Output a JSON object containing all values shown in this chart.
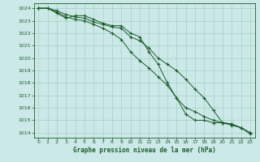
{
  "hours": [
    0,
    1,
    2,
    3,
    4,
    5,
    6,
    7,
    8,
    9,
    10,
    11,
    12,
    13,
    14,
    15,
    16,
    17,
    18,
    19,
    20,
    21,
    22,
    23
  ],
  "line1": [
    1024.0,
    1024.0,
    1023.8,
    1023.5,
    1023.3,
    1023.2,
    1022.9,
    1022.7,
    1022.5,
    1022.4,
    1021.7,
    1021.4,
    1020.8,
    1020.0,
    1019.5,
    1019.0,
    1018.3,
    1017.5,
    1016.8,
    1015.8,
    1014.8,
    1014.6,
    1014.4,
    1014.0
  ],
  "line2": [
    1024.0,
    1024.0,
    1023.6,
    1023.2,
    1023.4,
    1023.4,
    1023.1,
    1022.8,
    1022.6,
    1022.6,
    1022.0,
    1021.7,
    1020.5,
    1019.5,
    1018.0,
    1016.8,
    1015.5,
    1015.0,
    1015.0,
    1014.8,
    1014.8,
    1014.7,
    1014.4,
    1014.0
  ],
  "line3": [
    1024.0,
    1024.0,
    1023.7,
    1023.3,
    1023.1,
    1023.0,
    1022.7,
    1022.4,
    1022.0,
    1021.5,
    1020.5,
    1019.8,
    1019.2,
    1018.5,
    1017.8,
    1016.8,
    1016.0,
    1015.7,
    1015.3,
    1015.0,
    1014.8,
    1014.7,
    1014.4,
    1013.9
  ],
  "ylim_min": 1013.6,
  "ylim_max": 1024.4,
  "yticks": [
    1014,
    1015,
    1016,
    1017,
    1018,
    1019,
    1020,
    1021,
    1022,
    1023,
    1024
  ],
  "xlim_min": -0.5,
  "xlim_max": 23.5,
  "bg_color": "#cce8e8",
  "grid_color": "#99ccbb",
  "line_color": "#1a5c2a",
  "xlabel": "Graphe pression niveau de la mer (hPa)"
}
